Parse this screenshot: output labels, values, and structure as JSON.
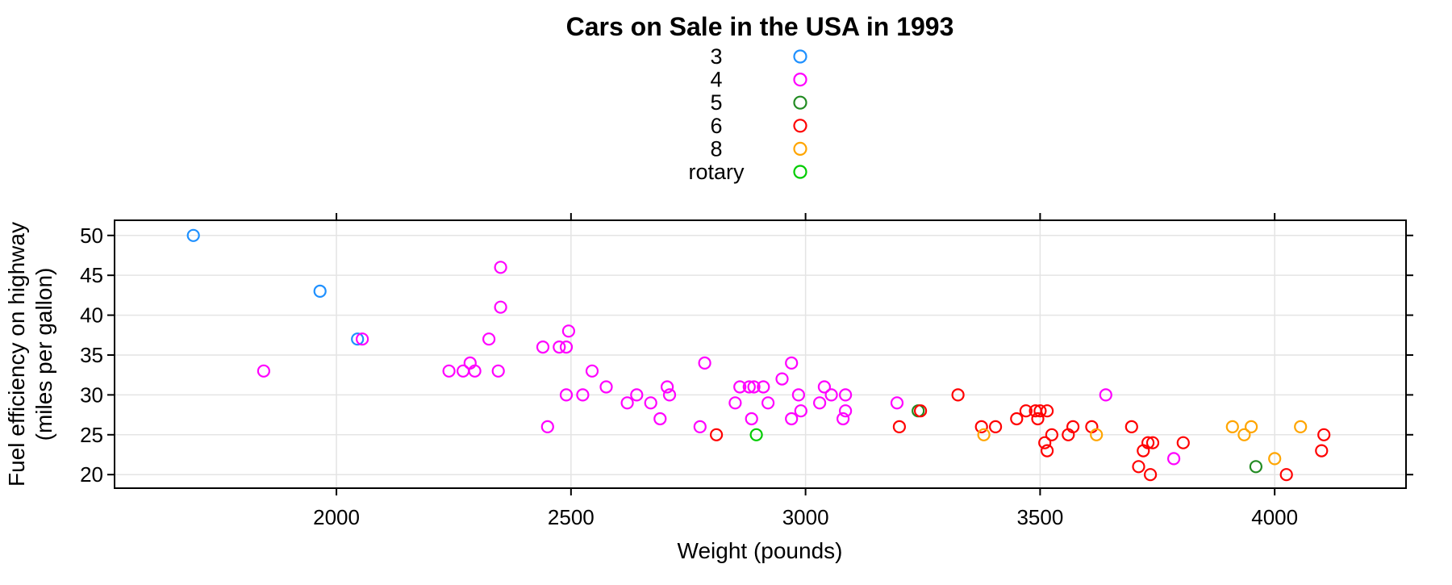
{
  "title": "Cars on Sale in the USA in 1993",
  "x_axis": {
    "label": "Weight (pounds)",
    "tick_labels": [
      "2000",
      "2500",
      "3000",
      "3500",
      "4000"
    ],
    "ticks": [
      2000,
      2500,
      3000,
      3500,
      4000
    ]
  },
  "y_axis": {
    "label_line1": "Fuel efficiency on highway",
    "label_line2": "(miles per gallon)",
    "tick_labels": [
      "20",
      "25",
      "30",
      "35",
      "40",
      "45",
      "50"
    ],
    "ticks": [
      20,
      25,
      30,
      35,
      40,
      45,
      50
    ]
  },
  "legend": {
    "entries": [
      {
        "label": "3",
        "color": "#1E90FF"
      },
      {
        "label": "4",
        "color": "#FF00FF"
      },
      {
        "label": "5",
        "color": "#228B22"
      },
      {
        "label": "6",
        "color": "#FF0000"
      },
      {
        "label": "8",
        "color": "#FFA500"
      },
      {
        "label": "rotary",
        "color": "#00CC00"
      }
    ]
  },
  "colors": {
    "grid": "#E4E4E4",
    "frame": "#000000",
    "background": "#FFFFFF"
  },
  "chart_data": {
    "type": "scatter",
    "title": "Cars on Sale in the USA in 1993",
    "xlabel": "Weight (pounds)",
    "ylabel": "Fuel efficiency on highway (miles per gallon)",
    "legend_title_values": "number of cylinders",
    "xlim": [
      1527,
      4280
    ],
    "ylim": [
      18.3,
      51.9
    ],
    "grid": true,
    "legend_position": "top-center",
    "marker": "open-circle",
    "series": [
      {
        "name": "3",
        "color": "#1E90FF",
        "points": [
          [
            1695,
            50
          ],
          [
            1965,
            43
          ],
          [
            2045,
            37
          ]
        ]
      },
      {
        "name": "4",
        "color": "#FF00FF",
        "points": [
          [
            1845,
            33
          ],
          [
            2055,
            37
          ],
          [
            2240,
            33
          ],
          [
            2270,
            33
          ],
          [
            2285,
            34
          ],
          [
            2295,
            33
          ],
          [
            2325,
            37
          ],
          [
            2345,
            33
          ],
          [
            2350,
            41
          ],
          [
            2350,
            46
          ],
          [
            2440,
            36
          ],
          [
            2450,
            26
          ],
          [
            2475,
            36
          ],
          [
            2490,
            30
          ],
          [
            2490,
            36
          ],
          [
            2495,
            38
          ],
          [
            2525,
            30
          ],
          [
            2545,
            33
          ],
          [
            2575,
            31
          ],
          [
            2620,
            29
          ],
          [
            2640,
            30
          ],
          [
            2670,
            29
          ],
          [
            2690,
            27
          ],
          [
            2705,
            31
          ],
          [
            2710,
            30
          ],
          [
            2775,
            26
          ],
          [
            2785,
            34
          ],
          [
            2850,
            29
          ],
          [
            2860,
            31
          ],
          [
            2880,
            31
          ],
          [
            2885,
            27
          ],
          [
            2890,
            31
          ],
          [
            2910,
            31
          ],
          [
            2920,
            29
          ],
          [
            2950,
            32
          ],
          [
            2970,
            27
          ],
          [
            2970,
            34
          ],
          [
            2985,
            30
          ],
          [
            2990,
            28
          ],
          [
            3030,
            29
          ],
          [
            3040,
            31
          ],
          [
            3055,
            30
          ],
          [
            3080,
            27
          ],
          [
            3085,
            28
          ],
          [
            3085,
            30
          ],
          [
            3195,
            29
          ],
          [
            3640,
            30
          ],
          [
            3785,
            22
          ]
        ]
      },
      {
        "name": "5",
        "color": "#228B22",
        "points": [
          [
            3240,
            28
          ],
          [
            3960,
            21
          ]
        ]
      },
      {
        "name": "6",
        "color": "#FF0000",
        "points": [
          [
            2810,
            25
          ],
          [
            3200,
            26
          ],
          [
            3245,
            28
          ],
          [
            3325,
            30
          ],
          [
            3375,
            26
          ],
          [
            3405,
            26
          ],
          [
            3450,
            27
          ],
          [
            3470,
            28
          ],
          [
            3490,
            28
          ],
          [
            3495,
            27
          ],
          [
            3500,
            28
          ],
          [
            3510,
            24
          ],
          [
            3515,
            23
          ],
          [
            3515,
            28
          ],
          [
            3525,
            25
          ],
          [
            3560,
            25
          ],
          [
            3570,
            26
          ],
          [
            3610,
            26
          ],
          [
            3695,
            26
          ],
          [
            3710,
            21
          ],
          [
            3720,
            23
          ],
          [
            3730,
            24
          ],
          [
            3735,
            20
          ],
          [
            3740,
            24
          ],
          [
            3805,
            24
          ],
          [
            4025,
            20
          ],
          [
            4100,
            23
          ],
          [
            4105,
            25
          ]
        ]
      },
      {
        "name": "8",
        "color": "#FFA500",
        "points": [
          [
            3380,
            25
          ],
          [
            3620,
            25
          ],
          [
            3910,
            26
          ],
          [
            3935,
            25
          ],
          [
            3950,
            26
          ],
          [
            4000,
            22
          ],
          [
            4055,
            26
          ]
        ]
      },
      {
        "name": "rotary",
        "color": "#00CC00",
        "points": [
          [
            2895,
            25
          ]
        ]
      }
    ]
  }
}
